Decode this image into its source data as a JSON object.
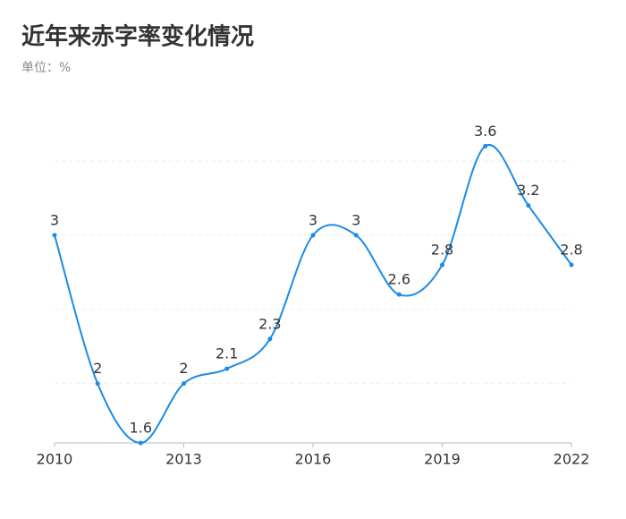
{
  "chart_data": {
    "type": "line",
    "title": "近年来赤字率变化情况",
    "subtitle": "单位：%",
    "x": [
      2010,
      2011,
      2012,
      2013,
      2014,
      2015,
      2016,
      2017,
      2018,
      2019,
      2020,
      2021,
      2022
    ],
    "series": [
      {
        "color": "#1a8be8",
        "values": [
          3,
          2,
          1.6,
          2,
          2.1,
          2.3,
          3,
          3,
          2.6,
          2.8,
          3.6,
          3.2,
          2.8
        ]
      }
    ],
    "xlim": [
      2010,
      2022
    ],
    "xticks": [
      2010,
      2013,
      2016,
      2019,
      2022
    ],
    "ylim": [
      1.6,
      4
    ],
    "yticks": [
      2,
      2.5,
      3,
      3.5
    ],
    "ytick_labels": false,
    "grid": true,
    "smooth": true,
    "data_labels": true
  }
}
